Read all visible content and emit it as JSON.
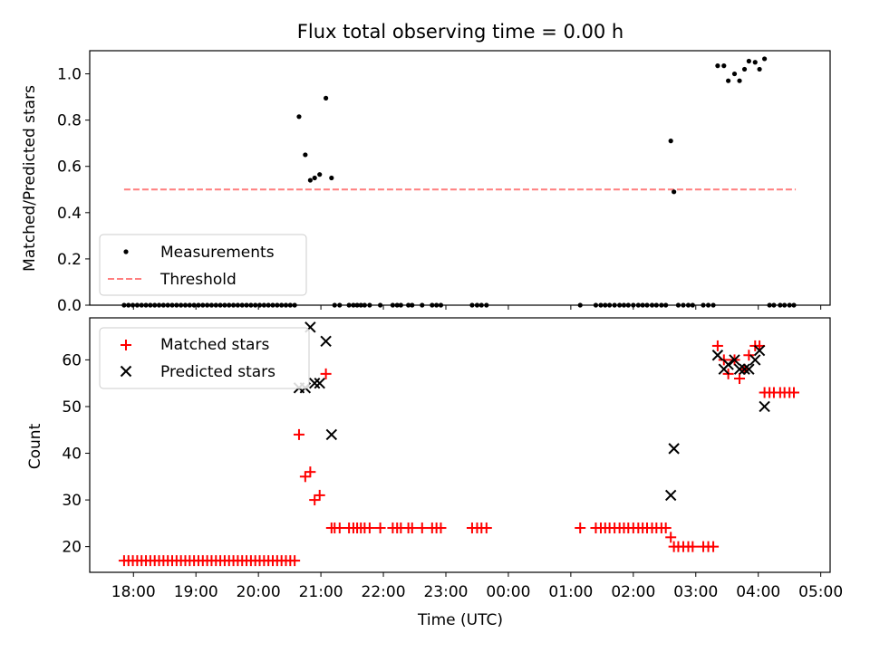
{
  "chart_data": [
    {
      "type": "scatter",
      "title": "Flux total observing time = 0.00 h",
      "xlabel": "",
      "ylabel": "Matched/Predicted stars",
      "ylim": [
        0.0,
        1.1
      ],
      "yticks": [
        "0.0",
        "0.2",
        "0.4",
        "0.6",
        "0.8",
        "1.0"
      ],
      "x_tick_labels_shown": false,
      "legend_position": "lower-left",
      "series": [
        {
          "name": "Measurements",
          "kind": "scatter",
          "marker": "dot",
          "color": "#000000",
          "points": [
            [
              17.85,
              0
            ],
            [
              17.92,
              0
            ],
            [
              17.99,
              0
            ],
            [
              18.06,
              0
            ],
            [
              18.13,
              0
            ],
            [
              18.2,
              0
            ],
            [
              18.27,
              0
            ],
            [
              18.34,
              0
            ],
            [
              18.41,
              0
            ],
            [
              18.48,
              0
            ],
            [
              18.55,
              0
            ],
            [
              18.62,
              0
            ],
            [
              18.69,
              0
            ],
            [
              18.76,
              0
            ],
            [
              18.83,
              0
            ],
            [
              18.9,
              0
            ],
            [
              18.97,
              0
            ],
            [
              19.04,
              0
            ],
            [
              19.11,
              0
            ],
            [
              19.18,
              0
            ],
            [
              19.25,
              0
            ],
            [
              19.32,
              0
            ],
            [
              19.39,
              0
            ],
            [
              19.46,
              0
            ],
            [
              19.53,
              0
            ],
            [
              19.6,
              0
            ],
            [
              19.67,
              0
            ],
            [
              19.74,
              0
            ],
            [
              19.81,
              0
            ],
            [
              19.88,
              0
            ],
            [
              19.95,
              0
            ],
            [
              20.02,
              0
            ],
            [
              20.09,
              0
            ],
            [
              20.16,
              0
            ],
            [
              20.23,
              0
            ],
            [
              20.3,
              0
            ],
            [
              20.37,
              0
            ],
            [
              20.44,
              0
            ],
            [
              20.51,
              0
            ],
            [
              20.58,
              0
            ],
            [
              20.65,
              0.815
            ],
            [
              20.75,
              0.65
            ],
            [
              20.83,
              0.54
            ],
            [
              20.9,
              0.55
            ],
            [
              20.98,
              0.565
            ],
            [
              21.08,
              0.895
            ],
            [
              21.17,
              0.55
            ],
            [
              21.22,
              0
            ],
            [
              21.3,
              0
            ],
            [
              21.45,
              0
            ],
            [
              21.52,
              0
            ],
            [
              21.58,
              0
            ],
            [
              21.64,
              0
            ],
            [
              21.7,
              0
            ],
            [
              21.78,
              0
            ],
            [
              21.95,
              0
            ],
            [
              22.15,
              0
            ],
            [
              22.22,
              0
            ],
            [
              22.28,
              0
            ],
            [
              22.4,
              0
            ],
            [
              22.46,
              0
            ],
            [
              22.62,
              0
            ],
            [
              22.78,
              0
            ],
            [
              22.85,
              0
            ],
            [
              22.92,
              0
            ],
            [
              23.42,
              0
            ],
            [
              23.5,
              0
            ],
            [
              23.57,
              0
            ],
            [
              23.65,
              0
            ],
            [
              25.15,
              0
            ],
            [
              25.4,
              0
            ],
            [
              25.48,
              0
            ],
            [
              25.55,
              0
            ],
            [
              25.62,
              0
            ],
            [
              25.7,
              0
            ],
            [
              25.78,
              0
            ],
            [
              25.85,
              0
            ],
            [
              25.92,
              0
            ],
            [
              26.0,
              0
            ],
            [
              26.08,
              0
            ],
            [
              26.15,
              0
            ],
            [
              26.22,
              0
            ],
            [
              26.3,
              0
            ],
            [
              26.37,
              0
            ],
            [
              26.45,
              0
            ],
            [
              26.52,
              0
            ],
            [
              26.6,
              0.71
            ],
            [
              26.65,
              0.49
            ],
            [
              26.72,
              0
            ],
            [
              26.8,
              0
            ],
            [
              26.88,
              0
            ],
            [
              26.95,
              0
            ],
            [
              27.12,
              0
            ],
            [
              27.2,
              0
            ],
            [
              27.28,
              0
            ],
            [
              27.35,
              1.035
            ],
            [
              27.45,
              1.035
            ],
            [
              27.52,
              0.97
            ],
            [
              27.62,
              1.0
            ],
            [
              27.7,
              0.97
            ],
            [
              27.78,
              1.02
            ],
            [
              27.85,
              1.055
            ],
            [
              27.95,
              1.05
            ],
            [
              28.02,
              1.02
            ],
            [
              28.1,
              1.065
            ],
            [
              28.18,
              0
            ],
            [
              28.25,
              0
            ],
            [
              28.35,
              0
            ],
            [
              28.42,
              0
            ],
            [
              28.5,
              0
            ],
            [
              28.57,
              0
            ]
          ]
        },
        {
          "name": "Threshold",
          "kind": "line",
          "style": "dashed",
          "color": "#ff7f7f",
          "points": [
            [
              17.85,
              0.5
            ],
            [
              28.6,
              0.5
            ]
          ]
        }
      ]
    },
    {
      "type": "scatter",
      "title": "",
      "xlabel": "Time (UTC)",
      "ylabel": "Count",
      "ylim": [
        14.5,
        69
      ],
      "yticks": [
        "20",
        "30",
        "40",
        "50",
        "60"
      ],
      "xlim": [
        17.3,
        29.15
      ],
      "xticks": [
        {
          "value": 18,
          "label": "18:00"
        },
        {
          "value": 19,
          "label": "19:00"
        },
        {
          "value": 20,
          "label": "20:00"
        },
        {
          "value": 21,
          "label": "21:00"
        },
        {
          "value": 22,
          "label": "22:00"
        },
        {
          "value": 23,
          "label": "23:00"
        },
        {
          "value": 24,
          "label": "00:00"
        },
        {
          "value": 25,
          "label": "01:00"
        },
        {
          "value": 26,
          "label": "02:00"
        },
        {
          "value": 27,
          "label": "03:00"
        },
        {
          "value": 28,
          "label": "04:00"
        },
        {
          "value": 29,
          "label": "05:00"
        }
      ],
      "legend_position": "upper-left",
      "series": [
        {
          "name": "Matched stars",
          "kind": "scatter",
          "marker": "plus",
          "color": "#ff0000",
          "points": [
            [
              17.85,
              17
            ],
            [
              17.92,
              17
            ],
            [
              17.99,
              17
            ],
            [
              18.06,
              17
            ],
            [
              18.13,
              17
            ],
            [
              18.2,
              17
            ],
            [
              18.27,
              17
            ],
            [
              18.34,
              17
            ],
            [
              18.41,
              17
            ],
            [
              18.48,
              17
            ],
            [
              18.55,
              17
            ],
            [
              18.62,
              17
            ],
            [
              18.69,
              17
            ],
            [
              18.76,
              17
            ],
            [
              18.83,
              17
            ],
            [
              18.9,
              17
            ],
            [
              18.97,
              17
            ],
            [
              19.04,
              17
            ],
            [
              19.11,
              17
            ],
            [
              19.18,
              17
            ],
            [
              19.25,
              17
            ],
            [
              19.32,
              17
            ],
            [
              19.39,
              17
            ],
            [
              19.46,
              17
            ],
            [
              19.53,
              17
            ],
            [
              19.6,
              17
            ],
            [
              19.67,
              17
            ],
            [
              19.74,
              17
            ],
            [
              19.81,
              17
            ],
            [
              19.88,
              17
            ],
            [
              19.95,
              17
            ],
            [
              20.02,
              17
            ],
            [
              20.09,
              17
            ],
            [
              20.16,
              17
            ],
            [
              20.23,
              17
            ],
            [
              20.3,
              17
            ],
            [
              20.37,
              17
            ],
            [
              20.44,
              17
            ],
            [
              20.51,
              17
            ],
            [
              20.58,
              17
            ],
            [
              20.65,
              44
            ],
            [
              20.75,
              35
            ],
            [
              20.83,
              36
            ],
            [
              20.9,
              30
            ],
            [
              20.98,
              31
            ],
            [
              21.08,
              57
            ],
            [
              21.17,
              24
            ],
            [
              21.22,
              24
            ],
            [
              21.3,
              24
            ],
            [
              21.45,
              24
            ],
            [
              21.52,
              24
            ],
            [
              21.58,
              24
            ],
            [
              21.64,
              24
            ],
            [
              21.7,
              24
            ],
            [
              21.78,
              24
            ],
            [
              21.95,
              24
            ],
            [
              22.15,
              24
            ],
            [
              22.22,
              24
            ],
            [
              22.28,
              24
            ],
            [
              22.4,
              24
            ],
            [
              22.46,
              24
            ],
            [
              22.62,
              24
            ],
            [
              22.78,
              24
            ],
            [
              22.85,
              24
            ],
            [
              22.92,
              24
            ],
            [
              23.42,
              24
            ],
            [
              23.5,
              24
            ],
            [
              23.57,
              24
            ],
            [
              23.65,
              24
            ],
            [
              25.15,
              24
            ],
            [
              25.4,
              24
            ],
            [
              25.48,
              24
            ],
            [
              25.55,
              24
            ],
            [
              25.62,
              24
            ],
            [
              25.7,
              24
            ],
            [
              25.78,
              24
            ],
            [
              25.85,
              24
            ],
            [
              25.92,
              24
            ],
            [
              26.0,
              24
            ],
            [
              26.08,
              24
            ],
            [
              26.15,
              24
            ],
            [
              26.22,
              24
            ],
            [
              26.3,
              24
            ],
            [
              26.37,
              24
            ],
            [
              26.45,
              24
            ],
            [
              26.52,
              24
            ],
            [
              26.6,
              22
            ],
            [
              26.65,
              20
            ],
            [
              26.72,
              20
            ],
            [
              26.8,
              20
            ],
            [
              26.88,
              20
            ],
            [
              26.95,
              20
            ],
            [
              27.12,
              20
            ],
            [
              27.2,
              20
            ],
            [
              27.28,
              20
            ],
            [
              27.35,
              63
            ],
            [
              27.45,
              60
            ],
            [
              27.52,
              57
            ],
            [
              27.62,
              60
            ],
            [
              27.7,
              56
            ],
            [
              27.78,
              58
            ],
            [
              27.85,
              61
            ],
            [
              27.95,
              63
            ],
            [
              28.02,
              63
            ],
            [
              28.1,
              53
            ],
            [
              28.18,
              53
            ],
            [
              28.25,
              53
            ],
            [
              28.35,
              53
            ],
            [
              28.42,
              53
            ],
            [
              28.5,
              53
            ],
            [
              28.57,
              53
            ]
          ]
        },
        {
          "name": "Predicted stars",
          "kind": "scatter",
          "marker": "x",
          "color": "#000000",
          "points": [
            [
              20.65,
              54
            ],
            [
              20.75,
              54
            ],
            [
              20.83,
              67
            ],
            [
              20.9,
              55
            ],
            [
              20.98,
              55
            ],
            [
              21.08,
              64
            ],
            [
              21.17,
              44
            ],
            [
              26.6,
              31
            ],
            [
              26.65,
              41
            ],
            [
              27.35,
              61
            ],
            [
              27.45,
              58
            ],
            [
              27.52,
              59
            ],
            [
              27.62,
              60
            ],
            [
              27.7,
              58
            ],
            [
              27.78,
              58
            ],
            [
              27.85,
              58
            ],
            [
              27.95,
              60
            ],
            [
              28.02,
              62
            ],
            [
              28.1,
              50
            ]
          ]
        }
      ]
    }
  ]
}
